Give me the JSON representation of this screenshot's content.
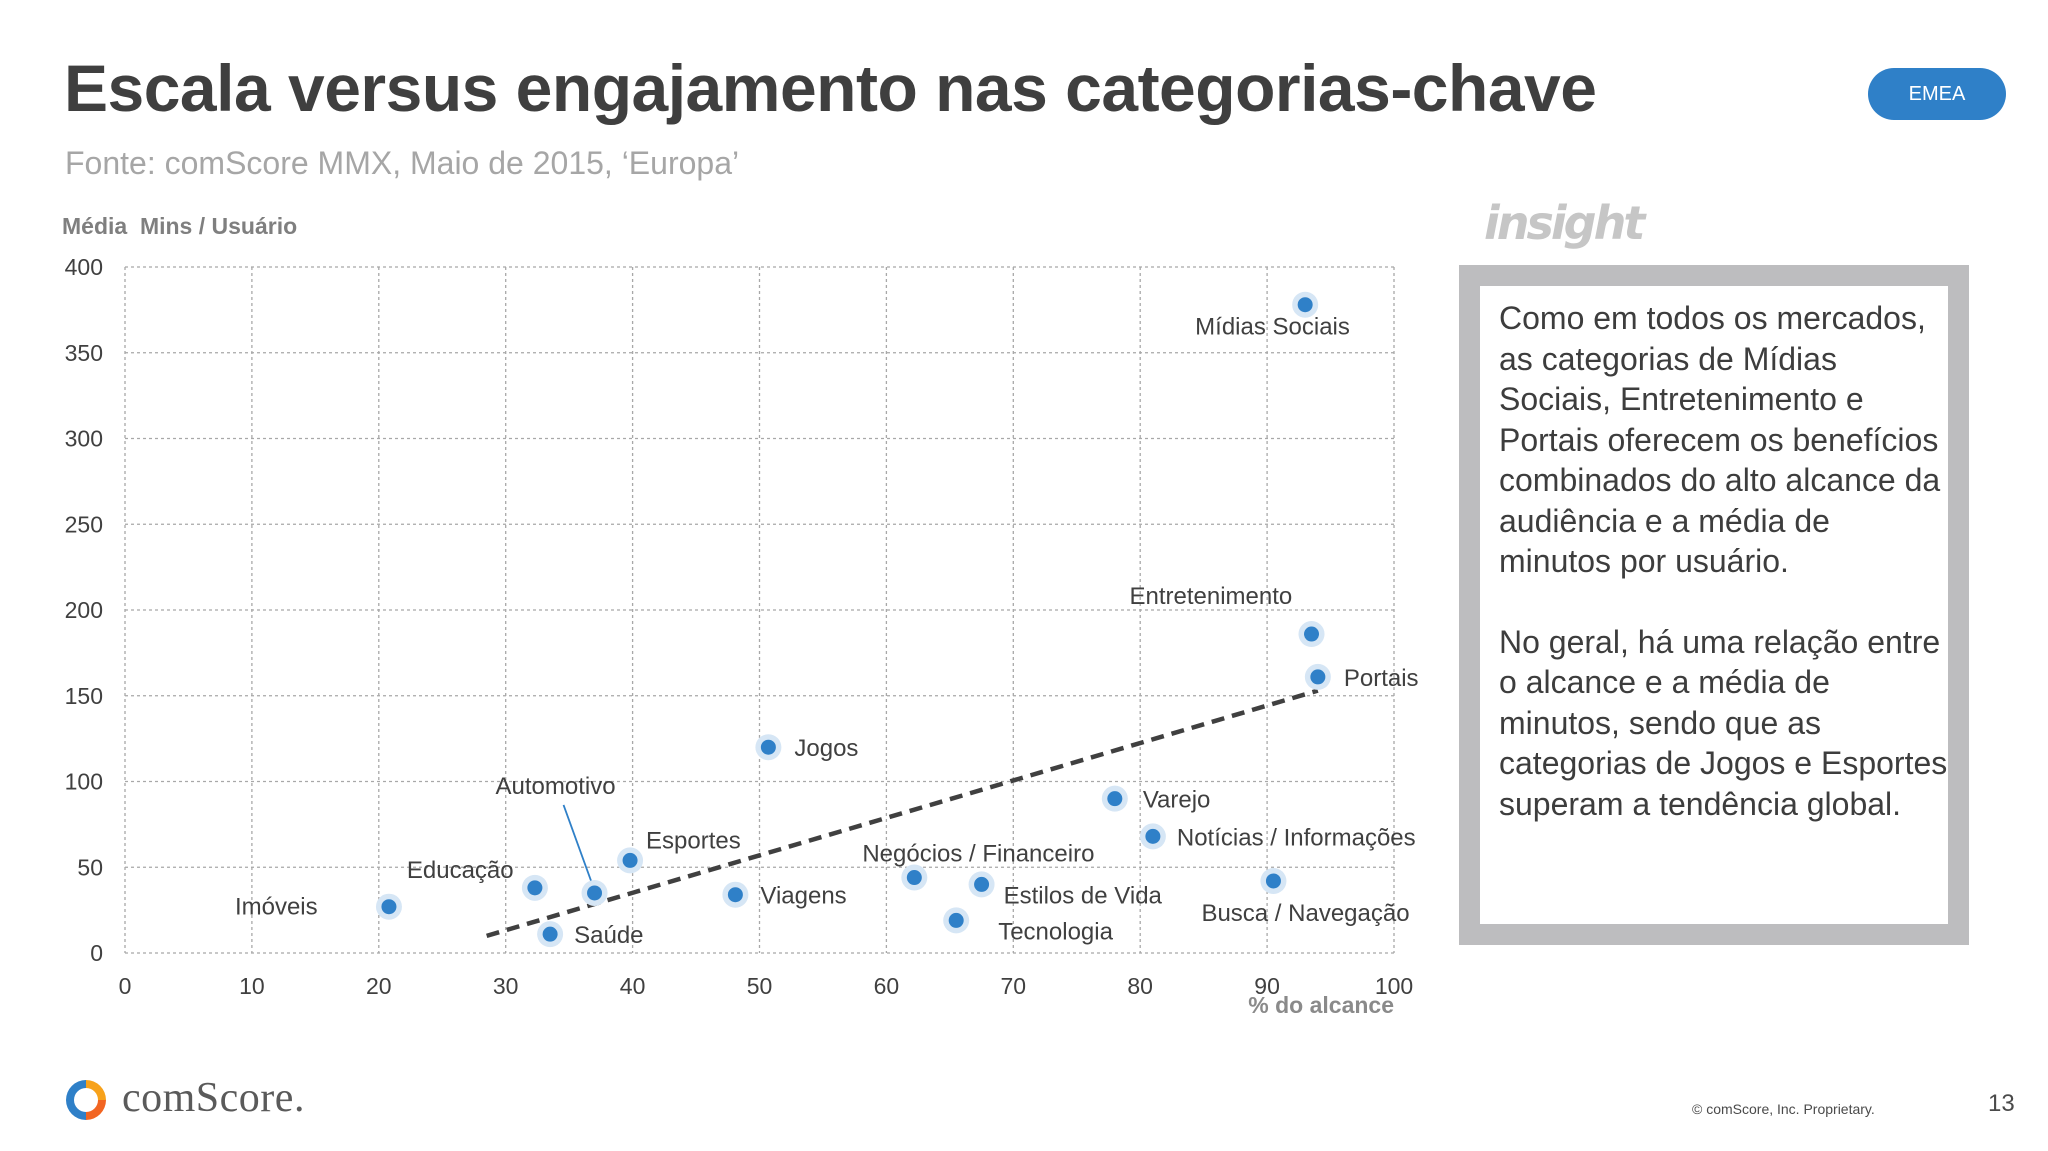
{
  "header": {
    "title": "Escala versus engajamento nas categorias-chave",
    "subtitle": "Fonte: comScore MMX, Maio de 2015, ‘Europa’",
    "region_badge": "EMEA"
  },
  "insight": {
    "logo_text": "insight",
    "paragraph_1": "Como em todos os mercados, as categorias de Mídias Sociais, Entretenimento e Portais oferecem os benefícios combinados do alto alcance da audiência e a média de minutos por usuário.",
    "paragraph_2": "No geral, há uma relação entre o alcance e a média de minutos, sendo que as categorias de Jogos e Esportes superam a tendência global."
  },
  "footer": {
    "brand": "comScore.",
    "copyright": "© comScore, Inc. Proprietary.",
    "page_number": "13"
  },
  "colors": {
    "point": "#2f80c8",
    "point_halo": "#d6e6f5",
    "trendline": "#404040",
    "grid": "#a8a8a8",
    "badge": "#2f80c8"
  },
  "chart_data": {
    "type": "scatter",
    "ylabel": "Média  Mins / Usuário",
    "xlabel": "% do alcance",
    "xlim": [
      0,
      100
    ],
    "ylim": [
      0,
      400
    ],
    "x_ticks": [
      0,
      10,
      20,
      30,
      40,
      50,
      60,
      70,
      80,
      90,
      100
    ],
    "y_ticks": [
      0,
      50,
      100,
      150,
      200,
      250,
      300,
      350,
      400
    ],
    "grid": true,
    "points": [
      {
        "label": "Mídias Sociais",
        "x": 93,
        "y": 378
      },
      {
        "label": "Entretenimento",
        "x": 93.5,
        "y": 186
      },
      {
        "label": "Portais",
        "x": 94,
        "y": 161
      },
      {
        "label": "Jogos",
        "x": 50.7,
        "y": 120
      },
      {
        "label": "Varejo",
        "x": 78,
        "y": 90
      },
      {
        "label": "Notícias / Informações",
        "x": 81,
        "y": 68
      },
      {
        "label": "Esportes",
        "x": 39.8,
        "y": 54
      },
      {
        "label": "Negócios / Financeiro",
        "x": 62.2,
        "y": 44
      },
      {
        "label": "Estilos de Vida",
        "x": 67.5,
        "y": 40
      },
      {
        "label": "Busca / Navegação",
        "x": 90.5,
        "y": 42
      },
      {
        "label": "Educação",
        "x": 32.3,
        "y": 38
      },
      {
        "label": "Automotivo",
        "x": 37,
        "y": 35
      },
      {
        "label": "Viagens",
        "x": 48.1,
        "y": 34
      },
      {
        "label": "Imóveis",
        "x": 20.8,
        "y": 27
      },
      {
        "label": "Tecnologia",
        "x": 65.5,
        "y": 19
      },
      {
        "label": "Saúde",
        "x": 33.5,
        "y": 11
      }
    ],
    "trendline": {
      "x": [
        28.5,
        94
      ],
      "y": [
        10,
        153
      ],
      "style": "dashed"
    }
  }
}
